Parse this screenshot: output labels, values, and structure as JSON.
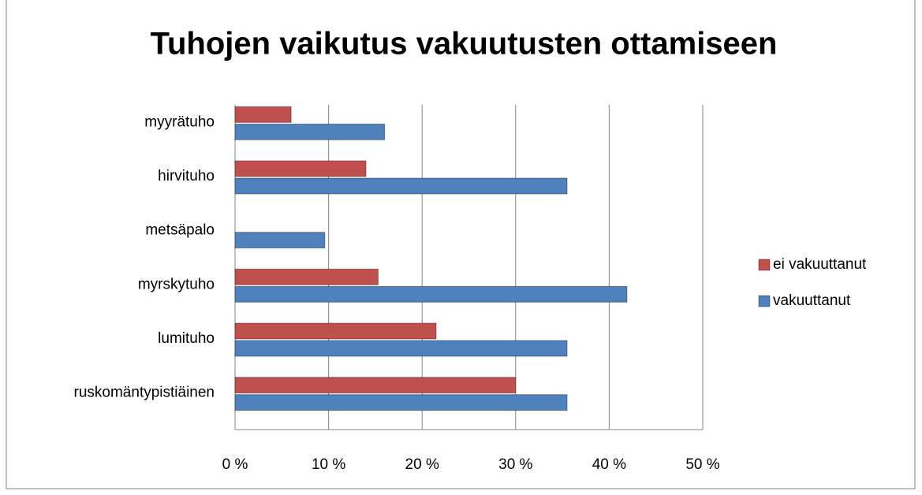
{
  "chart_data": {
    "type": "bar",
    "orientation": "horizontal",
    "title": "Tuhojen vaikutus vakuutusten ottamiseen",
    "categories": [
      "myyrätuho",
      "hirvituho",
      "metsäpalo",
      "myrskytuho",
      "lumituho",
      "ruskomäntypistiäinen"
    ],
    "series": [
      {
        "name": "ei vakuuttanut",
        "color": "#c0504d",
        "values": [
          6,
          14,
          0,
          15.3,
          21.5,
          30
        ]
      },
      {
        "name": "vakuuttanut",
        "color": "#4f81bd",
        "values": [
          16,
          35.5,
          9.6,
          41.9,
          35.5,
          35.5
        ]
      }
    ],
    "xlim": [
      0,
      50
    ],
    "xticks": [
      {
        "value": 0,
        "label": "0 %"
      },
      {
        "value": 10,
        "label": "10 %"
      },
      {
        "value": 20,
        "label": "20 %"
      },
      {
        "value": 30,
        "label": "30 %"
      },
      {
        "value": 40,
        "label": "40 %"
      },
      {
        "value": 50,
        "label": "50 %"
      }
    ],
    "grid": true,
    "legend": "right"
  }
}
